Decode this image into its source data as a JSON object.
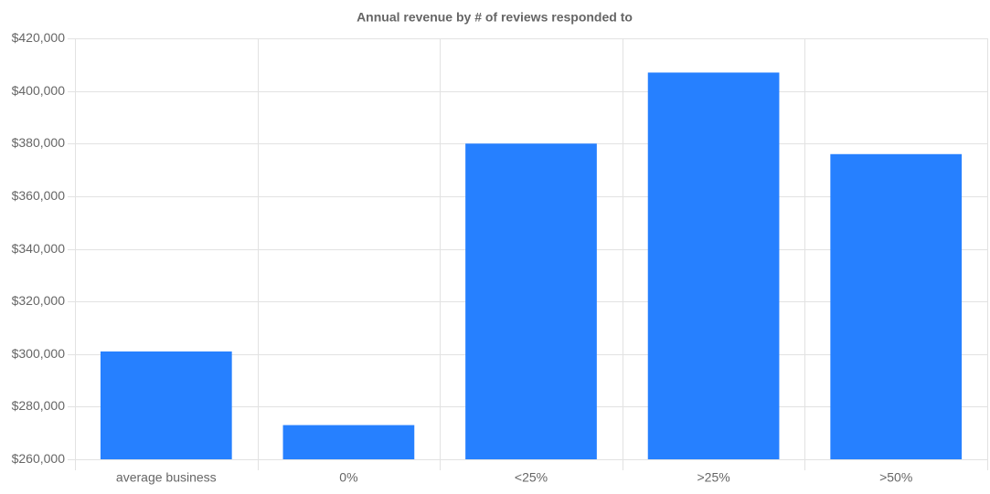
{
  "chart_data": {
    "type": "bar",
    "title": "Annual revenue by # of reviews responded to",
    "categories": [
      "average business",
      "0%",
      "<25%",
      ">25%",
      ">50%"
    ],
    "values": [
      301000,
      273000,
      380000,
      407000,
      376000
    ],
    "color": "#2680ff",
    "ylim": [
      260000,
      420000
    ],
    "yticks": [
      {
        "value": 260000,
        "label": "$260,000"
      },
      {
        "value": 280000,
        "label": "$280,000"
      },
      {
        "value": 300000,
        "label": "$300,000"
      },
      {
        "value": 320000,
        "label": "$320,000"
      },
      {
        "value": 340000,
        "label": "$340,000"
      },
      {
        "value": 360000,
        "label": "$360,000"
      },
      {
        "value": 380000,
        "label": "$380,000"
      },
      {
        "value": 400000,
        "label": "$400,000"
      },
      {
        "value": 420000,
        "label": "$420,000"
      }
    ],
    "grid": true
  }
}
